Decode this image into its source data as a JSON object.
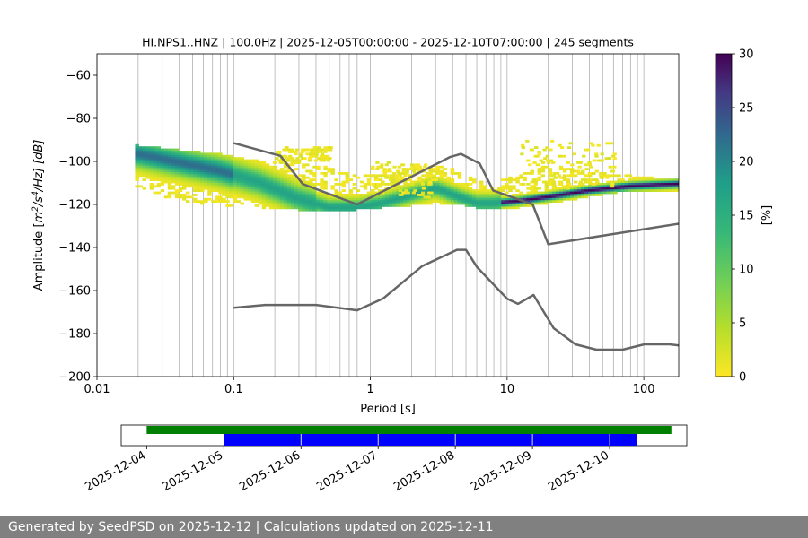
{
  "chart_data": [
    {
      "type": "heatmap",
      "title": "HI.NPS1..HNZ | 100.0Hz | 2025-12-05T00:00:00 - 2025-12-10T07:00:00 | 245 segments",
      "xlabel": "Period [s]",
      "ylabel_parts": {
        "pre": "Amplitude [",
        "m": "m",
        "sup1": "2",
        "mid": "/s",
        "sup2": "4",
        "post": "/Hz] [dB]"
      },
      "x_scale": "log",
      "xlim": [
        0.01,
        180
      ],
      "ylim": [
        -200,
        -50
      ],
      "x_ticks": [
        {
          "value": 0.01,
          "label": "0.01"
        },
        {
          "value": 0.1,
          "label": "0.1"
        },
        {
          "value": 1,
          "label": "1"
        },
        {
          "value": 10,
          "label": "10"
        },
        {
          "value": 100,
          "label": "100"
        }
      ],
      "y_ticks": [
        {
          "value": -60,
          "label": "−60"
        },
        {
          "value": -80,
          "label": "−80"
        },
        {
          "value": -100,
          "label": "−100"
        },
        {
          "value": -120,
          "label": "−120"
        },
        {
          "value": -140,
          "label": "−140"
        },
        {
          "value": -160,
          "label": "−160"
        },
        {
          "value": -180,
          "label": "−180"
        },
        {
          "value": -200,
          "label": "−200"
        }
      ],
      "grid": "vertical lines at log-spaced periods",
      "colormap": "viridis_r",
      "colorbar": {
        "label": "[%]",
        "range": [
          0,
          30
        ],
        "ticks": [
          {
            "value": 0,
            "label": "0"
          },
          {
            "value": 5,
            "label": "5"
          },
          {
            "value": 10,
            "label": "10"
          },
          {
            "value": 15,
            "label": "15"
          },
          {
            "value": 20,
            "label": "20"
          },
          {
            "value": 25,
            "label": "25"
          },
          {
            "value": 30,
            "label": "30"
          }
        ]
      },
      "psd_mode_curve": {
        "period": [
          0.02,
          0.04,
          0.08,
          0.15,
          0.3,
          0.5,
          0.8,
          1.2,
          2,
          3,
          4,
          6,
          8,
          12,
          20,
          40,
          80,
          180
        ],
        "db": [
          -96,
          -100,
          -104,
          -109,
          -117,
          -121,
          -121,
          -119,
          -115,
          -112,
          -115,
          -119,
          -119,
          -118,
          -116,
          -113,
          -111,
          -110
        ]
      },
      "psd_spread": {
        "period": [
          0.02,
          0.04,
          0.08,
          0.15,
          0.3,
          0.5,
          0.8,
          1.2,
          2,
          3,
          4,
          6,
          8,
          12,
          20,
          40,
          80,
          180
        ],
        "low_db": [
          -112,
          -118,
          -120,
          -121,
          -122,
          -122,
          -122,
          -121,
          -120,
          -119,
          -119,
          -121,
          -122,
          -121,
          -119,
          -116,
          -113,
          -114
        ],
        "high_db": [
          -92,
          -94,
          -96,
          -99,
          -100,
          -102,
          -106,
          -106,
          -102,
          -101,
          -103,
          -108,
          -109,
          -106,
          -101,
          -104,
          -106,
          -108
        ]
      },
      "scatter_clusters": [
        {
          "period_range": [
            0.2,
            0.5
          ],
          "db_range": [
            -100,
            -93
          ]
        },
        {
          "period_range": [
            1.0,
            3.0
          ],
          "db_range": [
            -116,
            -100
          ]
        },
        {
          "period_range": [
            12,
            60
          ],
          "db_range": [
            -112,
            -90
          ]
        }
      ],
      "noise_model_high": {
        "period": [
          0.1,
          0.22,
          0.32,
          0.8,
          3.8,
          4.6,
          6.3,
          7.9,
          15.4,
          20,
          354.8
        ],
        "db": [
          -91.5,
          -97.4,
          -110.5,
          -120,
          -98,
          -96.5,
          -101,
          -113.5,
          -120,
          -138.5,
          -126
        ]
      },
      "noise_model_low": {
        "period": [
          0.1,
          0.17,
          0.4,
          0.8,
          1.24,
          2.4,
          4.3,
          5,
          6,
          10,
          12,
          15.6,
          21.9,
          31.6,
          45,
          70,
          101,
          154,
          328
        ],
        "db": [
          -168,
          -166.7,
          -166.7,
          -169.2,
          -163.7,
          -148.6,
          -141.1,
          -141.1,
          -149,
          -163.8,
          -166.2,
          -162.1,
          -177.5,
          -185,
          -187.5,
          -187.5,
          -185,
          -185,
          -187.5
        ]
      }
    },
    {
      "type": "timeline",
      "x_ticks": [
        "2025-12-04",
        "2025-12-05",
        "2025-12-06",
        "2025-12-07",
        "2025-12-08",
        "2025-12-09",
        "2025-12-10"
      ],
      "colors": {
        "available": "#008000",
        "used": "#0000ff"
      },
      "available": {
        "start_day": 4.0,
        "end_day": 10.8
      },
      "used_segments": [
        {
          "start_day": 5.0,
          "end_day": 5.995
        },
        {
          "start_day": 6.005,
          "end_day": 6.995
        },
        {
          "start_day": 7.005,
          "end_day": 7.995
        },
        {
          "start_day": 8.005,
          "end_day": 8.995
        },
        {
          "start_day": 9.005,
          "end_day": 9.995
        },
        {
          "start_day": 10.005,
          "end_day": 10.35
        }
      ]
    }
  ],
  "footer": {
    "text": "Generated by SeedPSD on 2025-12-12 | Calculations updated on 2025-12-11"
  }
}
